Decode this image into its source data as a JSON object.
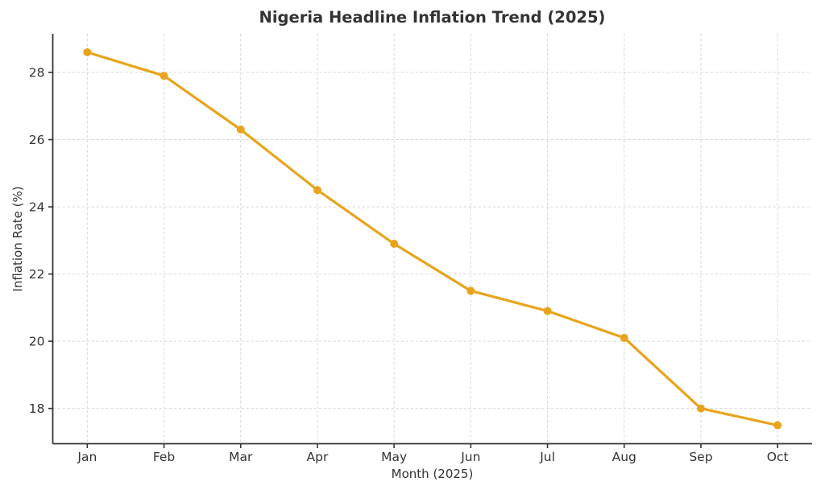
{
  "chart_data": {
    "type": "line",
    "title": "Nigeria Headline Inflation Trend (2025)",
    "xlabel": "Month (2025)",
    "ylabel": "Inflation Rate (%)",
    "categories": [
      "Jan",
      "Feb",
      "Mar",
      "Apr",
      "May",
      "Jun",
      "Jul",
      "Aug",
      "Sep",
      "Oct"
    ],
    "values": [
      28.6,
      27.9,
      26.3,
      24.5,
      22.9,
      21.5,
      20.9,
      20.1,
      18.0,
      17.5
    ],
    "yticks": [
      18,
      20,
      22,
      24,
      26,
      28
    ],
    "ylim": [
      16.95,
      29.15
    ],
    "grid": true,
    "grid_style": "dashed",
    "legend_position": "none",
    "line_color": "#E8A41C",
    "marker": "circle"
  },
  "style": {
    "text_color": "#333333",
    "grid_color": "#D9D9D9",
    "background": "#FFFFFF"
  }
}
